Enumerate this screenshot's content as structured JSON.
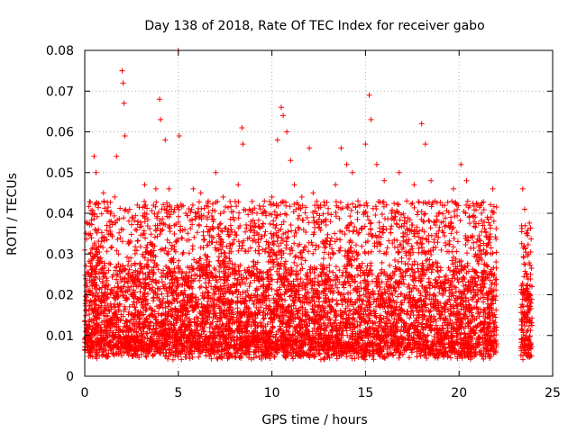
{
  "chart_data": {
    "type": "scatter",
    "title": "Day 138 of 2018, Rate Of TEC Index for receiver gabo",
    "xlabel": "GPS time / hours",
    "ylabel": "ROTI / TECUs",
    "xlim": [
      0,
      25
    ],
    "ylim": [
      0,
      0.08
    ],
    "xticks": [
      "0",
      "5",
      "10",
      "15",
      "20",
      "25"
    ],
    "yticks": [
      "0",
      "0.01",
      "0.02",
      "0.03",
      "0.04",
      "0.05",
      "0.06",
      "0.07",
      "0.08"
    ],
    "grid": true,
    "marker": "+",
    "color": "#ff0000",
    "series": [
      {
        "points": [
          [
            0.2,
            0.012
          ],
          [
            0.3,
            0.035
          ],
          [
            0.5,
            0.054
          ],
          [
            0.6,
            0.05
          ],
          [
            0.8,
            0.028
          ],
          [
            1.0,
            0.045
          ],
          [
            1.2,
            0.02
          ],
          [
            1.4,
            0.038
          ],
          [
            1.6,
            0.044
          ],
          [
            1.8,
            0.03
          ],
          [
            2.0,
            0.075
          ],
          [
            2.05,
            0.072
          ],
          [
            2.1,
            0.067
          ],
          [
            2.15,
            0.059
          ],
          [
            1.7,
            0.054
          ],
          [
            2.4,
            0.041
          ],
          [
            2.7,
            0.036
          ],
          [
            3.0,
            0.022
          ],
          [
            3.2,
            0.047
          ],
          [
            3.5,
            0.03
          ],
          [
            3.8,
            0.046
          ],
          [
            4.0,
            0.068
          ],
          [
            4.05,
            0.063
          ],
          [
            4.3,
            0.058
          ],
          [
            4.5,
            0.046
          ],
          [
            4.8,
            0.041
          ],
          [
            5.0,
            0.08
          ],
          [
            5.05,
            0.059
          ],
          [
            5.4,
            0.04
          ],
          [
            5.8,
            0.046
          ],
          [
            6.2,
            0.045
          ],
          [
            6.6,
            0.043
          ],
          [
            7.0,
            0.05
          ],
          [
            7.4,
            0.044
          ],
          [
            7.8,
            0.037
          ],
          [
            8.2,
            0.047
          ],
          [
            8.4,
            0.061
          ],
          [
            8.45,
            0.057
          ],
          [
            8.8,
            0.041
          ],
          [
            9.2,
            0.04
          ],
          [
            9.6,
            0.043
          ],
          [
            10.0,
            0.044
          ],
          [
            10.3,
            0.058
          ],
          [
            10.5,
            0.066
          ],
          [
            10.6,
            0.064
          ],
          [
            10.8,
            0.06
          ],
          [
            11.0,
            0.053
          ],
          [
            11.2,
            0.047
          ],
          [
            11.6,
            0.044
          ],
          [
            12.0,
            0.056
          ],
          [
            12.2,
            0.045
          ],
          [
            12.6,
            0.042
          ],
          [
            13.0,
            0.04
          ],
          [
            13.4,
            0.047
          ],
          [
            13.7,
            0.056
          ],
          [
            14.0,
            0.052
          ],
          [
            14.3,
            0.05
          ],
          [
            14.6,
            0.043
          ],
          [
            15.0,
            0.057
          ],
          [
            15.2,
            0.069
          ],
          [
            15.3,
            0.063
          ],
          [
            15.6,
            0.052
          ],
          [
            16.0,
            0.048
          ],
          [
            16.4,
            0.04
          ],
          [
            16.8,
            0.05
          ],
          [
            17.2,
            0.043
          ],
          [
            17.6,
            0.047
          ],
          [
            18.0,
            0.062
          ],
          [
            18.2,
            0.057
          ],
          [
            18.5,
            0.048
          ],
          [
            18.9,
            0.04
          ],
          [
            19.3,
            0.037
          ],
          [
            19.7,
            0.046
          ],
          [
            20.1,
            0.052
          ],
          [
            20.4,
            0.048
          ],
          [
            20.8,
            0.038
          ],
          [
            21.2,
            0.04
          ],
          [
            21.6,
            0.034
          ],
          [
            21.8,
            0.046
          ],
          [
            23.4,
            0.046
          ],
          [
            23.5,
            0.041
          ],
          [
            23.6,
            0.035
          ],
          [
            23.7,
            0.03
          ]
        ],
        "dense_bands": [
          {
            "x": [
              0,
              22
            ],
            "y_low": 0.004,
            "y_high": 0.03
          },
          {
            "x": [
              23.3,
              23.9
            ],
            "y_low": 0.004,
            "y_high": 0.025
          }
        ]
      }
    ]
  }
}
